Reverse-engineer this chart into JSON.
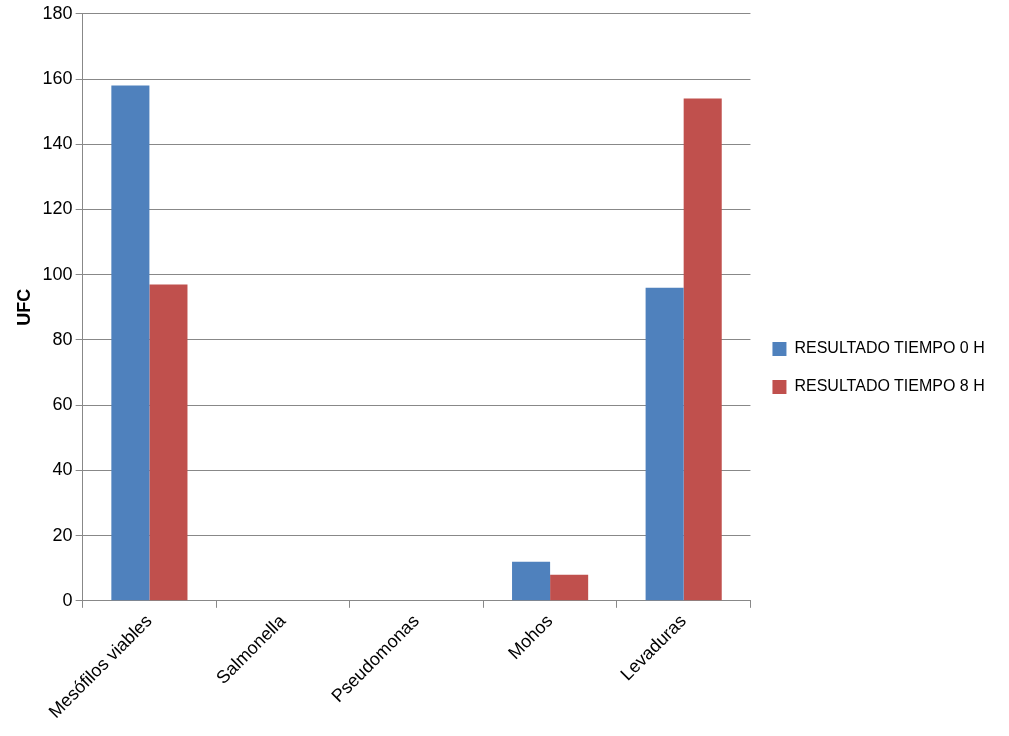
{
  "chart_data": {
    "type": "bar",
    "ylabel": "UFC",
    "categories": [
      "Mesófilos viables",
      "Salmonella",
      "Pseudomonas",
      "Mohos",
      "Levaduras"
    ],
    "series": [
      {
        "name": "RESULTADO TIEMPO 0 H",
        "color": "#4f81bd",
        "values": [
          158,
          0,
          0,
          12,
          96
        ]
      },
      {
        "name": "RESULTADO TIEMPO 8 H",
        "color": "#c0504d",
        "values": [
          97,
          0,
          0,
          8,
          154
        ]
      }
    ],
    "ylim": [
      0,
      180
    ],
    "yticks": [
      0,
      20,
      40,
      60,
      80,
      100,
      120,
      140,
      160,
      180
    ],
    "grid": "y",
    "legend": "right"
  }
}
